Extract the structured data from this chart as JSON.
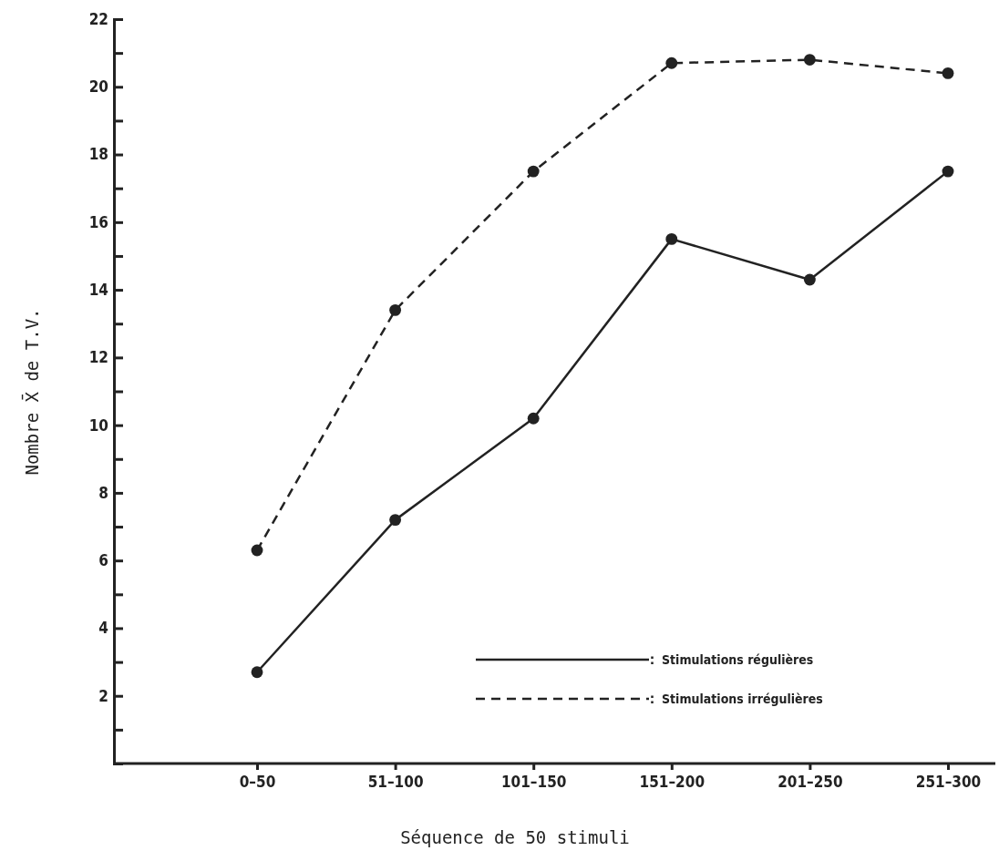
{
  "chart_data": {
    "type": "line",
    "xlabel": "Séquence de 50 stimuli",
    "ylabel": "Nombre X̄ de T.V.",
    "categories": [
      "0–50",
      "51–100",
      "101–150",
      "151–200",
      "201–250",
      "251–300"
    ],
    "series": [
      {
        "name": "Stimulations régulières",
        "color": "#222222",
        "line_style": "solid",
        "values": [
          2.7,
          7.2,
          10.2,
          15.5,
          14.3,
          17.5
        ]
      },
      {
        "name": "Stimulations irrégulières",
        "color": "#222222",
        "line_style": "dashed",
        "values": [
          6.3,
          13.4,
          17.5,
          20.7,
          20.8,
          20.4
        ]
      }
    ],
    "ylim": [
      0,
      22
    ],
    "yticks": [
      {
        "value": 1,
        "label": null
      },
      2,
      {
        "value": 3,
        "label": null
      },
      4,
      {
        "value": 5,
        "label": null
      },
      6,
      {
        "value": 7,
        "label": null
      },
      8,
      {
        "value": 9,
        "label": null
      },
      10,
      {
        "value": 11,
        "label": null
      },
      12,
      {
        "value": 13,
        "label": null
      },
      14,
      {
        "value": 15,
        "label": null
      },
      16,
      {
        "value": 17,
        "label": null
      },
      18,
      {
        "value": 19,
        "label": null
      },
      20,
      {
        "value": 21,
        "label": null
      },
      22
    ],
    "marker": "circle",
    "legend": "bottom right",
    "grid": false
  }
}
